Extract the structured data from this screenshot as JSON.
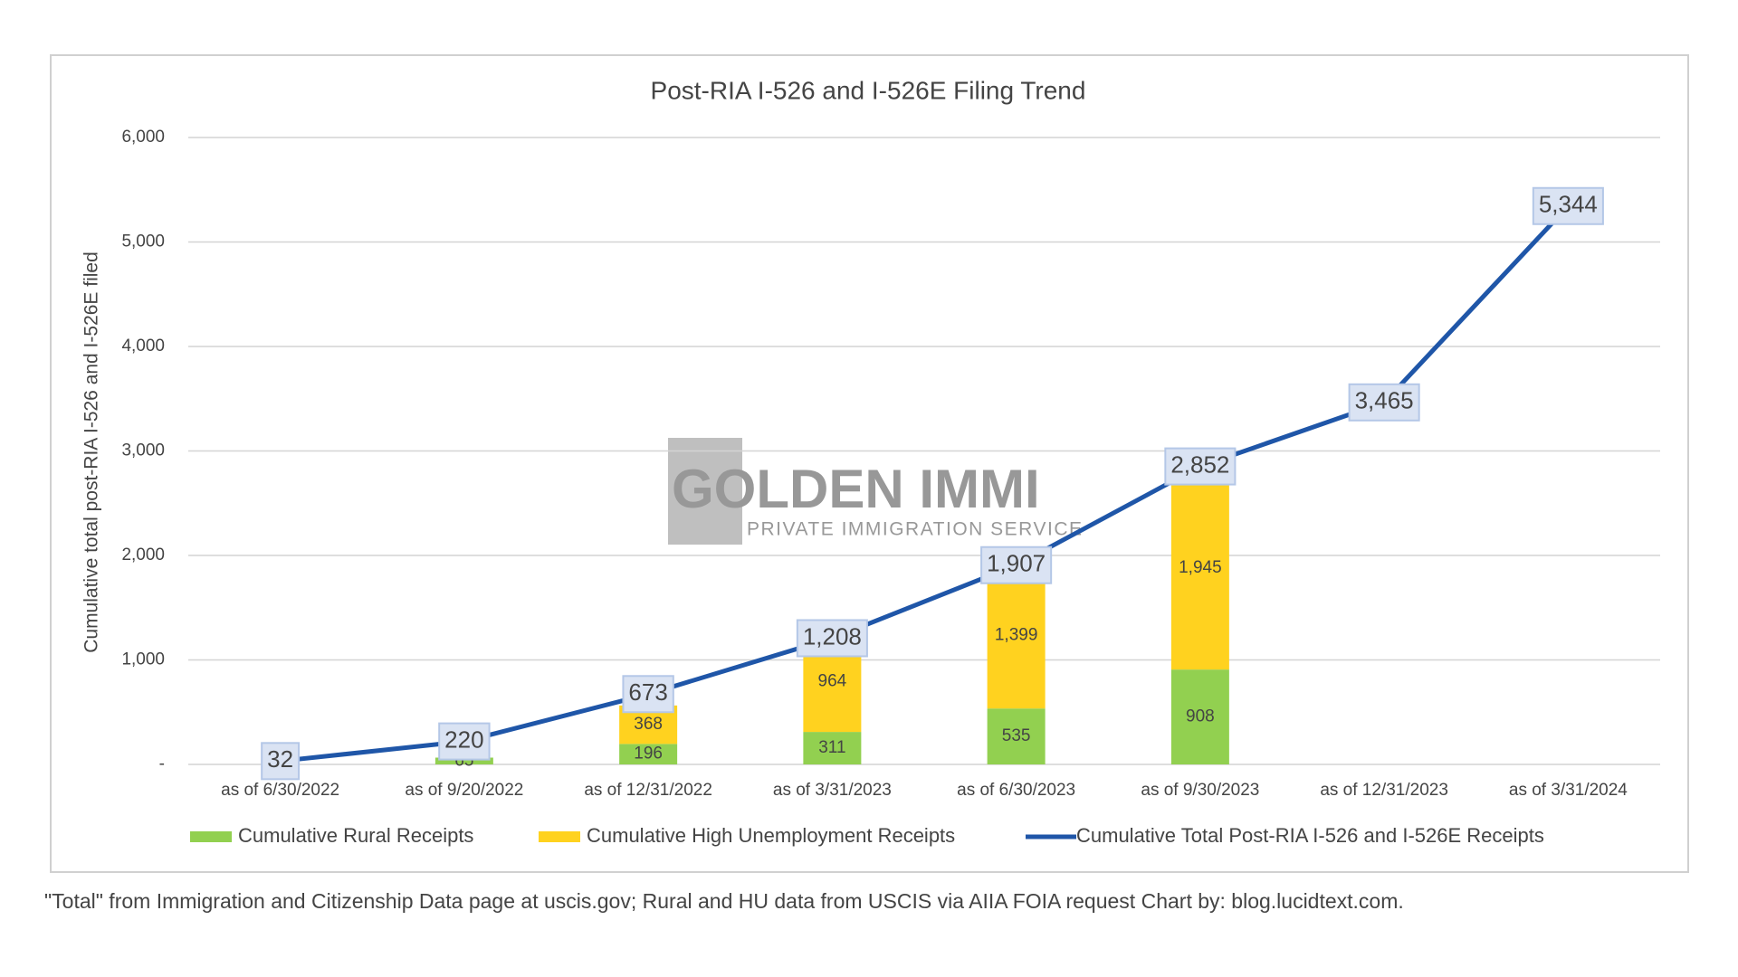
{
  "chart_data": {
    "type": "bar",
    "title": "Post-RIA I-526 and I-526E Filing Trend",
    "y_label": "Cumulative total post-RIA I-526 and I-526E filed",
    "categories": [
      "as of 6/30/2022",
      "as of 9/20/2022",
      "as of 12/31/2022",
      "as of 3/31/2023",
      "as of 6/30/2023",
      "as of 9/30/2023",
      "as of 12/31/2023",
      "as of 3/31/2024"
    ],
    "series": [
      {
        "name": "Cumulative Rural Receipts",
        "type": "bar",
        "color": "#92d050",
        "values": [
          null,
          65,
          196,
          311,
          535,
          908,
          null,
          null
        ]
      },
      {
        "name": "Cumulative High Unemployment Receipts",
        "type": "bar",
        "color": "#ffd21f",
        "values": [
          null,
          null,
          368,
          964,
          1399,
          1945,
          null,
          null
        ],
        "value_labels": [
          null,
          null,
          "368",
          "964",
          "1,399",
          "1,945",
          null,
          null
        ]
      },
      {
        "name": "Cumulative Total Post-RIA I-526 and I-526E Receipts",
        "type": "line",
        "color": "#1f56a8",
        "values": [
          32,
          220,
          673,
          1208,
          1907,
          2852,
          3465,
          5344
        ],
        "value_labels": [
          "32",
          "220",
          "673",
          "1,208",
          "1,907",
          "2,852",
          "3,465",
          "5,344"
        ]
      }
    ],
    "ylim": [
      0,
      6000
    ],
    "yticks": [
      {
        "value": 0,
        "label": "-"
      },
      {
        "value": 1000,
        "label": "1,000"
      },
      {
        "value": 2000,
        "label": "2,000"
      },
      {
        "value": 3000,
        "label": "3,000"
      },
      {
        "value": 4000,
        "label": "4,000"
      },
      {
        "value": 5000,
        "label": "5,000"
      },
      {
        "value": 6000,
        "label": "6,000"
      }
    ],
    "grid": true,
    "legend": "bottom",
    "footnote": "\"Total\" from Immigration and Citizenship Data page at uscis.gov; Rural and HU data from USCIS via AIIA FOIA request Chart by: blog.lucidtext.com.",
    "watermark": {
      "title": "GOLDEN IMMI",
      "subtitle": "PRIVATE IMMIGRATION SERVICE"
    }
  }
}
